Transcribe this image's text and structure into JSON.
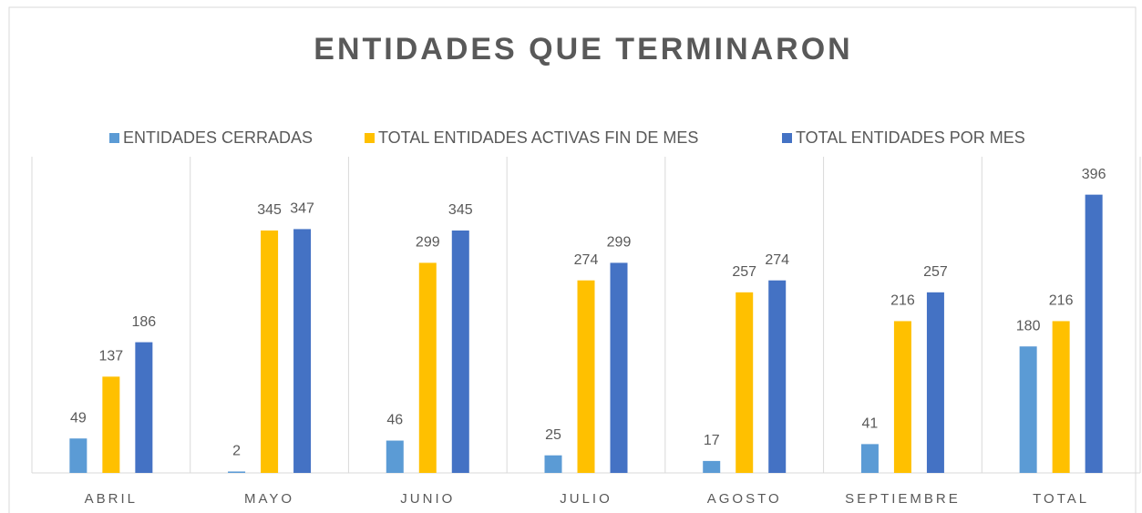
{
  "chart_data": {
    "type": "bar",
    "title": "ENTIDADES QUE TERMINARON",
    "categories": [
      "ABRIL",
      "MAYO",
      "JUNIO",
      "JULIO",
      "AGOSTO",
      "SEPTIEMBRE",
      "TOTAL"
    ],
    "series": [
      {
        "name": "ENTIDADES CERRADAS",
        "color": "#5b9bd5",
        "values": [
          49,
          2,
          46,
          25,
          17,
          41,
          180
        ]
      },
      {
        "name": "TOTAL ENTIDADES ACTIVAS FIN DE MES",
        "color": "#ffc000",
        "values": [
          137,
          345,
          299,
          274,
          257,
          216,
          216
        ]
      },
      {
        "name": "TOTAL ENTIDADES POR MES",
        "color": "#4472c4",
        "values": [
          186,
          347,
          345,
          299,
          274,
          257,
          396
        ]
      }
    ],
    "ylim": [
      0,
      450
    ],
    "legend": "top"
  }
}
